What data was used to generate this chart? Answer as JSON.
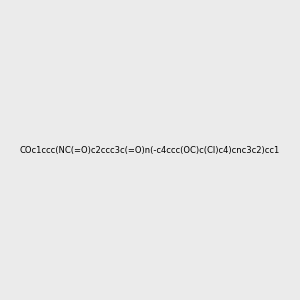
{
  "smiles": "COc1ccc(NC(=O)c2ccc3c(=O)n(-c4ccc(OC)c(Cl)c4)cnc3c2)cc1",
  "title": "",
  "bg_color": "#ebebeb",
  "img_size": [
    300,
    300
  ],
  "atom_colors": {
    "N": "#0000ff",
    "O": "#ff0000",
    "Cl": "#00cc00",
    "H_on_N": "#008080"
  },
  "bond_color": "#000000",
  "font_size": 10
}
